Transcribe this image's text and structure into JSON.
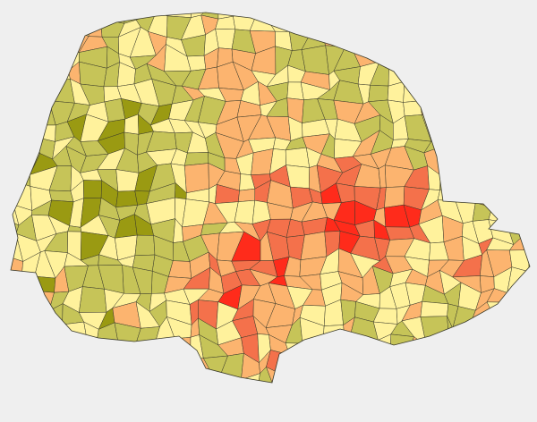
{
  "map": {
    "type": "choropleth",
    "background": "#efefef",
    "border_color": "#3a3a2a",
    "palette": [
      "#9a9a12",
      "#c6c458",
      "#fff29c",
      "#fcb46f",
      "#f4714b",
      "#ff2b1b"
    ]
  }
}
